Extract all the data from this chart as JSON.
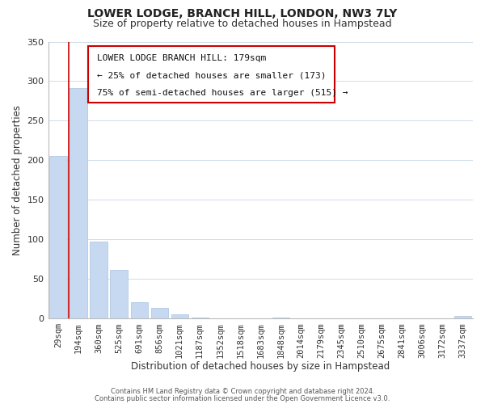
{
  "title": "LOWER LODGE, BRANCH HILL, LONDON, NW3 7LY",
  "subtitle": "Size of property relative to detached houses in Hampstead",
  "xlabel": "Distribution of detached houses by size in Hampstead",
  "ylabel": "Number of detached properties",
  "bar_labels": [
    "29sqm",
    "194sqm",
    "360sqm",
    "525sqm",
    "691sqm",
    "856sqm",
    "1021sqm",
    "1187sqm",
    "1352sqm",
    "1518sqm",
    "1683sqm",
    "1848sqm",
    "2014sqm",
    "2179sqm",
    "2345sqm",
    "2510sqm",
    "2675sqm",
    "2841sqm",
    "3006sqm",
    "3172sqm",
    "3337sqm"
  ],
  "bar_values": [
    205,
    291,
    97,
    61,
    21,
    13,
    5,
    1,
    0,
    0,
    0,
    1,
    0,
    0,
    0,
    0,
    0,
    0,
    0,
    0,
    3
  ],
  "bar_color": "#c6d9f0",
  "bar_edge_color": "#a8c4e0",
  "annotation_text_line1": "LOWER LODGE BRANCH HILL: 179sqm",
  "annotation_text_line2": "← 25% of detached houses are smaller (173)",
  "annotation_text_line3": "75% of semi-detached houses are larger (515) →",
  "ylim": [
    0,
    350
  ],
  "yticks": [
    0,
    50,
    100,
    150,
    200,
    250,
    300,
    350
  ],
  "footer1": "Contains HM Land Registry data © Crown copyright and database right 2024.",
  "footer2": "Contains public sector information licensed under the Open Government Licence v3.0.",
  "background_color": "#ffffff",
  "grid_color": "#d0dce8",
  "red_line_color": "#cc0000",
  "title_fontsize": 10,
  "subtitle_fontsize": 9,
  "tick_fontsize": 7.5,
  "axis_label_fontsize": 8.5,
  "annotation_fontsize": 8,
  "footer_fontsize": 6
}
